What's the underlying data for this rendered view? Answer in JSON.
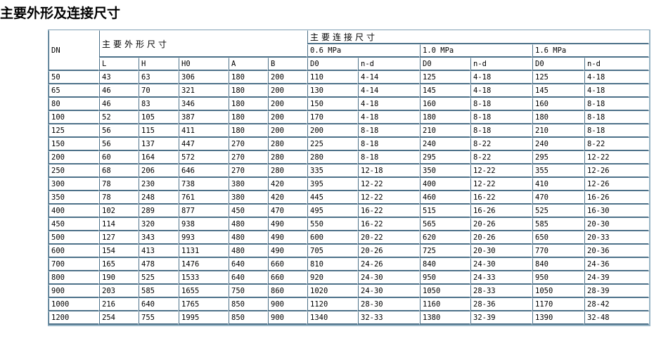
{
  "title": "主要外形及连接尺寸",
  "table": {
    "dn_header": "DN",
    "outline_header": "主要外形尺寸",
    "connection_header": "主要连接尺寸",
    "pressures": [
      "0.6 MPa",
      "1.0 MPa",
      "1.6 MPa"
    ],
    "columns": [
      "L",
      "H",
      "H0",
      "A",
      "B",
      "D0",
      "n-d",
      "D0",
      "n-d",
      "D0",
      "n-d"
    ],
    "rows": [
      [
        "50",
        "43",
        "63",
        "306",
        "180",
        "200",
        "110",
        "4-14",
        "125",
        "4-18",
        "125",
        "4-18"
      ],
      [
        "65",
        "46",
        "70",
        "321",
        "180",
        "200",
        "130",
        "4-14",
        "145",
        "4-18",
        "145",
        "4-18"
      ],
      [
        "80",
        "46",
        "83",
        "346",
        "180",
        "200",
        "150",
        "4-18",
        "160",
        "8-18",
        "160",
        "8-18"
      ],
      [
        "100",
        "52",
        "105",
        "387",
        "180",
        "200",
        "170",
        "4-18",
        "180",
        "8-18",
        "180",
        "8-18"
      ],
      [
        "125",
        "56",
        "115",
        "411",
        "180",
        "200",
        "200",
        "8-18",
        "210",
        "8-18",
        "210",
        "8-18"
      ],
      [
        "150",
        "56",
        "137",
        "447",
        "270",
        "280",
        "225",
        "8-18",
        "240",
        "8-22",
        "240",
        "8-22"
      ],
      [
        "200",
        "60",
        "164",
        "572",
        "270",
        "280",
        "280",
        "8-18",
        "295",
        "8-22",
        "295",
        "12-22"
      ],
      [
        "250",
        "68",
        "206",
        "646",
        "270",
        "280",
        "335",
        "12-18",
        "350",
        "12-22",
        "355",
        "12-26"
      ],
      [
        "300",
        "78",
        "230",
        "738",
        "380",
        "420",
        "395",
        "12-22",
        "400",
        "12-22",
        "410",
        "12-26"
      ],
      [
        "350",
        "78",
        "248",
        "761",
        "380",
        "420",
        "445",
        "12-22",
        "460",
        "16-22",
        "470",
        "16-26"
      ],
      [
        "400",
        "102",
        "289",
        "877",
        "450",
        "470",
        "495",
        "16-22",
        "515",
        "16-26",
        "525",
        "16-30"
      ],
      [
        "450",
        "114",
        "320",
        "938",
        "480",
        "490",
        "550",
        "16-22",
        "565",
        "20-26",
        "585",
        "20-30"
      ],
      [
        "500",
        "127",
        "343",
        "993",
        "480",
        "490",
        "600",
        "20-22",
        "620",
        "20-26",
        "650",
        "20-33"
      ],
      [
        "600",
        "154",
        "413",
        "1131",
        "480",
        "490",
        "705",
        "20-26",
        "725",
        "20-30",
        "770",
        "20-36"
      ],
      [
        "700",
        "165",
        "478",
        "1476",
        "640",
        "660",
        "810",
        "24-26",
        "840",
        "24-30",
        "840",
        "24-36"
      ],
      [
        "800",
        "190",
        "525",
        "1533",
        "640",
        "660",
        "920",
        "24-30",
        "950",
        "24-33",
        "950",
        "24-39"
      ],
      [
        "900",
        "203",
        "585",
        "1655",
        "750",
        "860",
        "1020",
        "24-30",
        "1050",
        "28-33",
        "1050",
        "28-39"
      ],
      [
        "1000",
        "216",
        "640",
        "1765",
        "850",
        "900",
        "1120",
        "28-30",
        "1160",
        "28-36",
        "1170",
        "28-42"
      ],
      [
        "1200",
        "254",
        "755",
        "1995",
        "850",
        "900",
        "1340",
        "32-33",
        "1380",
        "32-39",
        "1390",
        "32-48"
      ]
    ]
  }
}
